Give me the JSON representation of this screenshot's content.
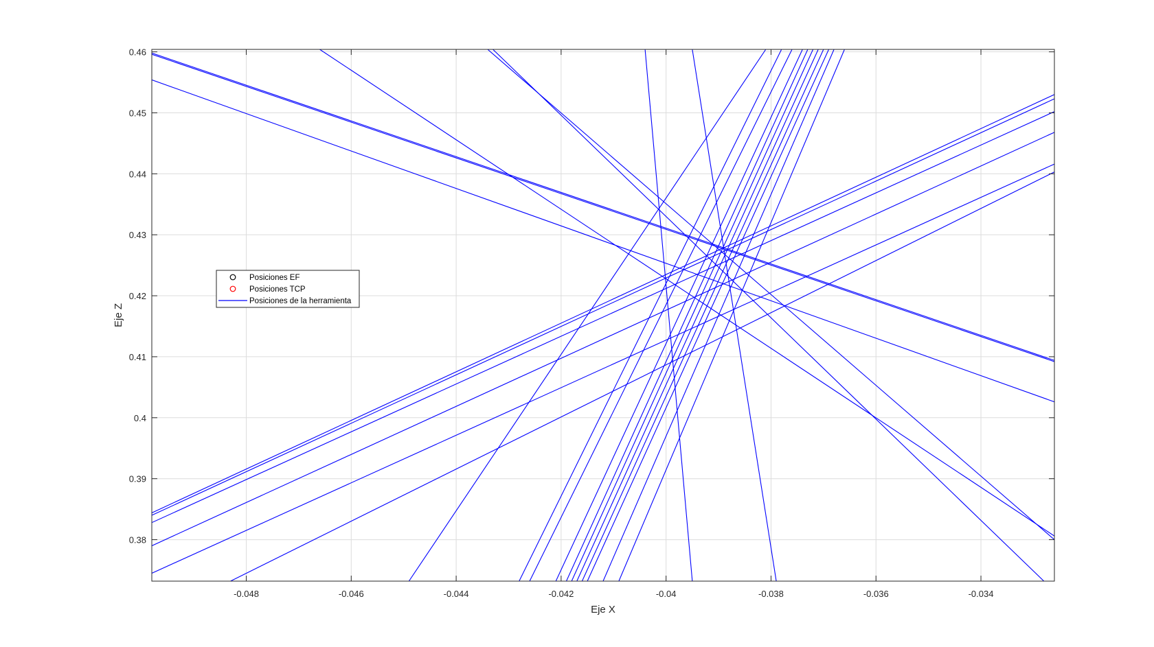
{
  "chart_data": {
    "type": "line",
    "title": "",
    "xlabel": "Eje X",
    "ylabel": "Eje Z",
    "xlim": [
      -0.0498,
      -0.0326
    ],
    "ylim": [
      0.3732,
      0.4604
    ],
    "xticks": [
      -0.048,
      -0.046,
      -0.044,
      -0.042,
      -0.04,
      -0.038,
      -0.036,
      -0.034
    ],
    "xtick_labels": [
      "-0.048",
      "-0.046",
      "-0.044",
      "-0.042",
      "-0.04",
      "-0.038",
      "-0.036",
      "-0.034"
    ],
    "yticks": [
      0.38,
      0.39,
      0.4,
      0.41,
      0.42,
      0.43,
      0.44,
      0.45,
      0.46
    ],
    "ytick_labels": [
      "0.38",
      "0.39",
      "0.4",
      "0.41",
      "0.42",
      "0.43",
      "0.44",
      "0.45",
      "0.46"
    ],
    "grid": true,
    "legend_position": "left",
    "legend": [
      {
        "label": "Posiciones EF",
        "marker": "circle",
        "color": "#000000"
      },
      {
        "label": "Posiciones TCP",
        "marker": "circle",
        "color": "#ff0000"
      },
      {
        "label": "Posiciones de la herramienta",
        "marker": "line",
        "color": "#0000ff"
      }
    ],
    "series": [
      {
        "values": [
          [
            -0.0498,
            0.4598
          ],
          [
            -0.0326,
            0.4094
          ]
        ]
      },
      {
        "values": [
          [
            -0.0498,
            0.4596
          ],
          [
            -0.0326,
            0.4092
          ]
        ]
      },
      {
        "values": [
          [
            -0.0498,
            0.4554
          ],
          [
            -0.0326,
            0.4026
          ]
        ]
      },
      {
        "values": [
          [
            -0.0466,
            0.4604
          ],
          [
            -0.0326,
            0.3806
          ]
        ]
      },
      {
        "values": [
          [
            -0.0434,
            0.4604
          ],
          [
            -0.0326,
            0.38
          ]
        ]
      },
      {
        "values": [
          [
            -0.0433,
            0.4604
          ],
          [
            -0.0328,
            0.3732
          ]
        ]
      },
      {
        "values": [
          [
            -0.0498,
            0.3844
          ],
          [
            -0.0326,
            0.453
          ]
        ]
      },
      {
        "values": [
          [
            -0.0498,
            0.384
          ],
          [
            -0.0326,
            0.4523
          ]
        ]
      },
      {
        "values": [
          [
            -0.0498,
            0.3828
          ],
          [
            -0.0326,
            0.4502
          ]
        ]
      },
      {
        "values": [
          [
            -0.0498,
            0.379
          ],
          [
            -0.0326,
            0.4468
          ]
        ]
      },
      {
        "values": [
          [
            -0.0498,
            0.3745
          ],
          [
            -0.0326,
            0.4416
          ]
        ]
      },
      {
        "values": [
          [
            -0.0483,
            0.3732
          ],
          [
            -0.0326,
            0.4403
          ]
        ]
      },
      {
        "values": [
          [
            -0.0449,
            0.3732
          ],
          [
            -0.0381,
            0.4604
          ]
        ]
      },
      {
        "values": [
          [
            -0.0428,
            0.3732
          ],
          [
            -0.0378,
            0.4604
          ]
        ]
      },
      {
        "values": [
          [
            -0.0426,
            0.3732
          ],
          [
            -0.0376,
            0.4604
          ]
        ]
      },
      {
        "values": [
          [
            -0.0421,
            0.3732
          ],
          [
            -0.0374,
            0.4604
          ]
        ]
      },
      {
        "values": [
          [
            -0.0419,
            0.3732
          ],
          [
            -0.0373,
            0.4604
          ]
        ]
      },
      {
        "values": [
          [
            -0.0418,
            0.3732
          ],
          [
            -0.0372,
            0.4604
          ]
        ]
      },
      {
        "values": [
          [
            -0.0417,
            0.3732
          ],
          [
            -0.0371,
            0.4604
          ]
        ]
      },
      {
        "values": [
          [
            -0.0416,
            0.3732
          ],
          [
            -0.037,
            0.4604
          ]
        ]
      },
      {
        "values": [
          [
            -0.0415,
            0.3732
          ],
          [
            -0.0369,
            0.4604
          ]
        ]
      },
      {
        "values": [
          [
            -0.0412,
            0.3732
          ],
          [
            -0.0368,
            0.4604
          ]
        ]
      },
      {
        "values": [
          [
            -0.0409,
            0.3732
          ],
          [
            -0.0366,
            0.4604
          ]
        ]
      },
      {
        "values": [
          [
            -0.0404,
            0.4604
          ],
          [
            -0.0395,
            0.3732
          ]
        ]
      },
      {
        "values": [
          [
            -0.0395,
            0.4604
          ],
          [
            -0.0379,
            0.3732
          ]
        ]
      }
    ]
  }
}
